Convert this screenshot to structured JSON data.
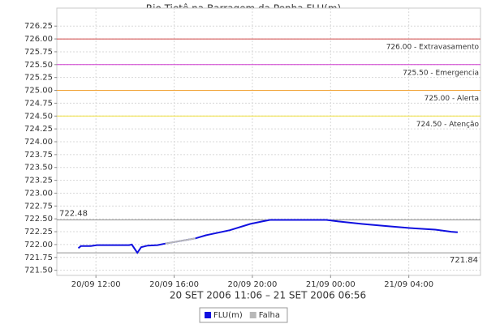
{
  "chart_data": {
    "type": "line",
    "title": "Rio Tietê na Barragem da Penha FLU(m)",
    "subtitle": "20 SET 2006 11:06 – 21 SET 2006 06:56",
    "x": [
      "2006-09-20T11:06",
      "2006-09-20T11:14",
      "2006-09-20T11:44",
      "2006-09-20T12:03",
      "2006-09-20T13:42",
      "2006-09-20T13:50",
      "2006-09-20T14:07",
      "2006-09-20T14:19",
      "2006-09-20T14:39",
      "2006-09-20T15:09",
      "2006-09-20T15:33",
      "2006-09-20T17:05",
      "2006-09-20T17:37",
      "2006-09-20T18:51",
      "2006-09-20T19:53",
      "2006-09-20T20:30",
      "2006-09-20T20:54",
      "2006-09-20T23:47",
      "2006-09-21T00:24",
      "2006-09-21T01:38",
      "2006-09-21T02:52",
      "2006-09-21T04:06",
      "2006-09-21T05:21",
      "2006-09-21T06:10",
      "2006-09-21T06:30"
    ],
    "series": [
      {
        "name": "FLU(m)",
        "color": "#1010e0",
        "values": [
          721.93,
          721.97,
          721.97,
          721.99,
          721.99,
          722.0,
          721.84,
          721.95,
          721.98,
          721.99,
          722.02,
          722.12,
          722.18,
          722.28,
          722.4,
          722.45,
          722.48,
          722.48,
          722.45,
          722.4,
          722.36,
          722.32,
          722.29,
          722.25,
          722.24
        ]
      },
      {
        "name": "Falha",
        "color": "#b8b8b8",
        "values": [
          null,
          null,
          null,
          null,
          null,
          null,
          null,
          null,
          null,
          null,
          722.02,
          722.12,
          null,
          null,
          null,
          null,
          null,
          null,
          null,
          null,
          null,
          null,
          null,
          null,
          null
        ]
      }
    ],
    "xlim": [
      "2006-09-20T10:00",
      "2006-09-21T07:40"
    ],
    "xticks": [
      {
        "value": "2006-09-20T12:00",
        "label": "20/09 12:00"
      },
      {
        "value": "2006-09-20T16:00",
        "label": "20/09 16:00"
      },
      {
        "value": "2006-09-20T20:00",
        "label": "20/09 20:00"
      },
      {
        "value": "2006-09-21T00:00",
        "label": "21/09 00:00"
      },
      {
        "value": "2006-09-21T04:00",
        "label": "21/09 04:00"
      }
    ],
    "ylim": [
      721.4,
      726.6
    ],
    "yticks": [
      {
        "value": 721.5,
        "label": "721.50"
      },
      {
        "value": 721.75,
        "label": "721.75"
      },
      {
        "value": 722,
        "label": "722.00"
      },
      {
        "value": 722.25,
        "label": "722.25"
      },
      {
        "value": 722.5,
        "label": "722.50"
      },
      {
        "value": 722.75,
        "label": "722.75"
      },
      {
        "value": 723,
        "label": "723.00"
      },
      {
        "value": 723.25,
        "label": "723.25"
      },
      {
        "value": 723.5,
        "label": "723.50"
      },
      {
        "value": 723.75,
        "label": "723.75"
      },
      {
        "value": 724,
        "label": "724.00"
      },
      {
        "value": 724.25,
        "label": "724.25"
      },
      {
        "value": 724.5,
        "label": "724.50"
      },
      {
        "value": 724.75,
        "label": "724.75"
      },
      {
        "value": 725,
        "label": "725.00"
      },
      {
        "value": 725.25,
        "label": "725.25"
      },
      {
        "value": 725.5,
        "label": "725.50"
      },
      {
        "value": 725.75,
        "label": "725.75"
      },
      {
        "value": 726,
        "label": "726.00"
      },
      {
        "value": 726.25,
        "label": "726.25"
      }
    ],
    "grid": true,
    "thresholds": [
      {
        "value": 726.0,
        "label": "726.00 - Extravasamento",
        "color": "#d04a4a"
      },
      {
        "value": 725.5,
        "label": "725.50 - Emergencia",
        "color": "#d040d0"
      },
      {
        "value": 725.0,
        "label": "725.00 - Alerta",
        "color": "#f0a030"
      },
      {
        "value": 724.5,
        "label": "724.50 - Atenção",
        "color": "#f0e040"
      }
    ],
    "extremes": [
      {
        "value": 722.48,
        "label": "722.48",
        "color": "#909090",
        "side": "left"
      },
      {
        "value": 721.84,
        "label": "721.84",
        "color": "#909090",
        "side": "right"
      }
    ],
    "legend": "bottom"
  }
}
